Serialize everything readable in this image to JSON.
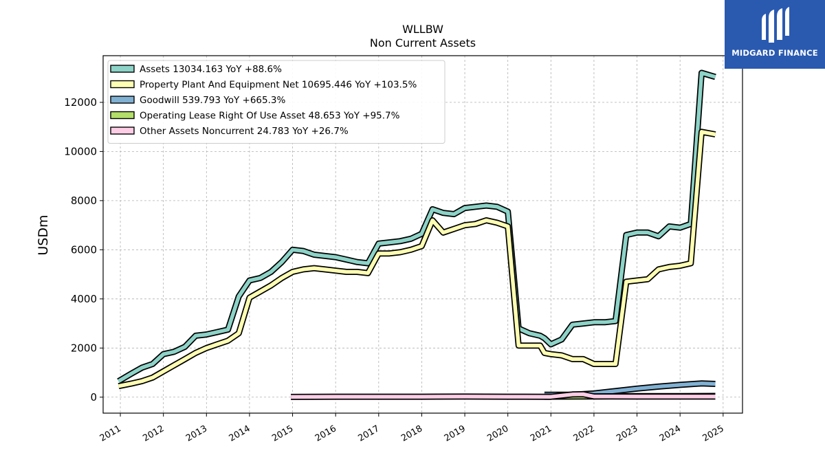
{
  "chart_data": {
    "type": "line",
    "title": "WLLBW",
    "subtitle": "Non Current  Assets",
    "ylabel": "USDm",
    "xlabel": "",
    "xlim": [
      2010.6,
      2025.45
    ],
    "ylim": [
      -650,
      13900
    ],
    "xticks": [
      {
        "value": 2011,
        "label": "2011"
      },
      {
        "value": 2012,
        "label": "2012"
      },
      {
        "value": 2013,
        "label": "2013"
      },
      {
        "value": 2014,
        "label": "2014"
      },
      {
        "value": 2015,
        "label": "2015"
      },
      {
        "value": 2016,
        "label": "2016"
      },
      {
        "value": 2017,
        "label": "2017"
      },
      {
        "value": 2018,
        "label": "2018"
      },
      {
        "value": 2019,
        "label": "2019"
      },
      {
        "value": 2020,
        "label": "2020"
      },
      {
        "value": 2021,
        "label": "2021"
      },
      {
        "value": 2022,
        "label": "2022"
      },
      {
        "value": 2023,
        "label": "2023"
      },
      {
        "value": 2024,
        "label": "2024"
      },
      {
        "value": 2025,
        "label": "2025"
      }
    ],
    "yticks": [
      {
        "value": 0,
        "label": "0"
      },
      {
        "value": 2000,
        "label": "2000"
      },
      {
        "value": 4000,
        "label": "4000"
      },
      {
        "value": 6000,
        "label": "6000"
      },
      {
        "value": 8000,
        "label": "8000"
      },
      {
        "value": 10000,
        "label": "10000"
      },
      {
        "value": 12000,
        "label": "12000"
      }
    ],
    "grid": true,
    "legend_position": "top-left",
    "series": [
      {
        "name": "Assets  13034.163 YoY +88.6%",
        "color": "#8dd3c7",
        "points": [
          [
            2010.96,
            650
          ],
          [
            2011.25,
            950
          ],
          [
            2011.5,
            1200
          ],
          [
            2011.75,
            1350
          ],
          [
            2012.0,
            1750
          ],
          [
            2012.25,
            1850
          ],
          [
            2012.5,
            2050
          ],
          [
            2012.75,
            2500
          ],
          [
            2013.0,
            2550
          ],
          [
            2013.25,
            2650
          ],
          [
            2013.5,
            2750
          ],
          [
            2013.75,
            4100
          ],
          [
            2014.0,
            4750
          ],
          [
            2014.25,
            4850
          ],
          [
            2014.5,
            5100
          ],
          [
            2014.75,
            5500
          ],
          [
            2015.0,
            6000
          ],
          [
            2015.25,
            5950
          ],
          [
            2015.5,
            5800
          ],
          [
            2015.75,
            5750
          ],
          [
            2016.0,
            5700
          ],
          [
            2016.25,
            5600
          ],
          [
            2016.5,
            5500
          ],
          [
            2016.75,
            5450
          ],
          [
            2017.0,
            6250
          ],
          [
            2017.25,
            6300
          ],
          [
            2017.5,
            6350
          ],
          [
            2017.75,
            6450
          ],
          [
            2018.0,
            6650
          ],
          [
            2018.25,
            7650
          ],
          [
            2018.5,
            7500
          ],
          [
            2018.75,
            7450
          ],
          [
            2019.0,
            7700
          ],
          [
            2019.25,
            7750
          ],
          [
            2019.5,
            7800
          ],
          [
            2019.75,
            7750
          ],
          [
            2020.0,
            7550
          ],
          [
            2020.25,
            2800
          ],
          [
            2020.5,
            2600
          ],
          [
            2020.75,
            2500
          ],
          [
            2020.85,
            2400
          ],
          [
            2021.0,
            2150
          ],
          [
            2021.25,
            2350
          ],
          [
            2021.5,
            2950
          ],
          [
            2021.75,
            3000
          ],
          [
            2022.0,
            3050
          ],
          [
            2022.25,
            3050
          ],
          [
            2022.5,
            3100
          ],
          [
            2022.75,
            6600
          ],
          [
            2023.0,
            6700
          ],
          [
            2023.25,
            6700
          ],
          [
            2023.5,
            6550
          ],
          [
            2023.75,
            6950
          ],
          [
            2024.0,
            6900
          ],
          [
            2024.25,
            7050
          ],
          [
            2024.5,
            13200
          ],
          [
            2024.82,
            13034
          ]
        ]
      },
      {
        "name": "Property Plant And Equipment Net  10695.446 YoY +103.5%",
        "color": "#ffffb3",
        "points": [
          [
            2010.96,
            450
          ],
          [
            2011.25,
            550
          ],
          [
            2011.5,
            650
          ],
          [
            2011.75,
            800
          ],
          [
            2012.0,
            1050
          ],
          [
            2012.25,
            1300
          ],
          [
            2012.5,
            1550
          ],
          [
            2012.75,
            1800
          ],
          [
            2013.0,
            2000
          ],
          [
            2013.25,
            2150
          ],
          [
            2013.5,
            2300
          ],
          [
            2013.75,
            2600
          ],
          [
            2014.0,
            4050
          ],
          [
            2014.25,
            4300
          ],
          [
            2014.5,
            4550
          ],
          [
            2014.75,
            4850
          ],
          [
            2015.0,
            5100
          ],
          [
            2015.25,
            5200
          ],
          [
            2015.5,
            5250
          ],
          [
            2015.75,
            5200
          ],
          [
            2016.0,
            5150
          ],
          [
            2016.25,
            5100
          ],
          [
            2016.5,
            5100
          ],
          [
            2016.75,
            5050
          ],
          [
            2017.0,
            5850
          ],
          [
            2017.25,
            5850
          ],
          [
            2017.5,
            5900
          ],
          [
            2017.75,
            6000
          ],
          [
            2018.0,
            6150
          ],
          [
            2018.25,
            7200
          ],
          [
            2018.5,
            6700
          ],
          [
            2018.75,
            6850
          ],
          [
            2019.0,
            7000
          ],
          [
            2019.25,
            7050
          ],
          [
            2019.5,
            7200
          ],
          [
            2019.75,
            7100
          ],
          [
            2020.0,
            6950
          ],
          [
            2020.25,
            2100
          ],
          [
            2020.5,
            2100
          ],
          [
            2020.75,
            2100
          ],
          [
            2020.85,
            1800
          ],
          [
            2021.0,
            1750
          ],
          [
            2021.25,
            1700
          ],
          [
            2021.5,
            1550
          ],
          [
            2021.75,
            1550
          ],
          [
            2022.0,
            1350
          ],
          [
            2022.25,
            1350
          ],
          [
            2022.5,
            1350
          ],
          [
            2022.75,
            4700
          ],
          [
            2023.0,
            4750
          ],
          [
            2023.25,
            4800
          ],
          [
            2023.5,
            5200
          ],
          [
            2023.75,
            5300
          ],
          [
            2024.0,
            5350
          ],
          [
            2024.25,
            5450
          ],
          [
            2024.5,
            10800
          ],
          [
            2024.82,
            10695
          ]
        ]
      },
      {
        "name": "Goodwill  539.793 YoY +665.3%",
        "color": "#80b1d3",
        "points": [
          [
            2020.85,
            100
          ],
          [
            2021.5,
            100
          ],
          [
            2022.0,
            150
          ],
          [
            2022.5,
            250
          ],
          [
            2023.0,
            350
          ],
          [
            2023.5,
            430
          ],
          [
            2024.0,
            500
          ],
          [
            2024.5,
            560
          ],
          [
            2024.82,
            540
          ]
        ]
      },
      {
        "name": "Operating Lease Right Of Use Asset  48.653 YoY +95.7%",
        "color": "#b3de69",
        "points": [
          [
            2020.85,
            20
          ],
          [
            2021.5,
            25
          ],
          [
            2022.0,
            30
          ],
          [
            2022.5,
            35
          ],
          [
            2023.0,
            40
          ],
          [
            2023.5,
            42
          ],
          [
            2024.0,
            45
          ],
          [
            2024.82,
            49
          ]
        ]
      },
      {
        "name": "Other Assets Noncurrent  24.783 YoY +26.7%",
        "color": "#fccde5",
        "points": [
          [
            2014.96,
            10
          ],
          [
            2016.0,
            20
          ],
          [
            2018.0,
            20
          ],
          [
            2019.0,
            25
          ],
          [
            2020.0,
            20
          ],
          [
            2021.0,
            15
          ],
          [
            2021.5,
            110
          ],
          [
            2021.75,
            120
          ],
          [
            2022.0,
            30
          ],
          [
            2023.0,
            25
          ],
          [
            2024.0,
            25
          ],
          [
            2024.82,
            25
          ]
        ]
      }
    ]
  },
  "logo": {
    "text": "MIDGARD FINANCE",
    "icon": "midgard-m-logo-icon"
  }
}
